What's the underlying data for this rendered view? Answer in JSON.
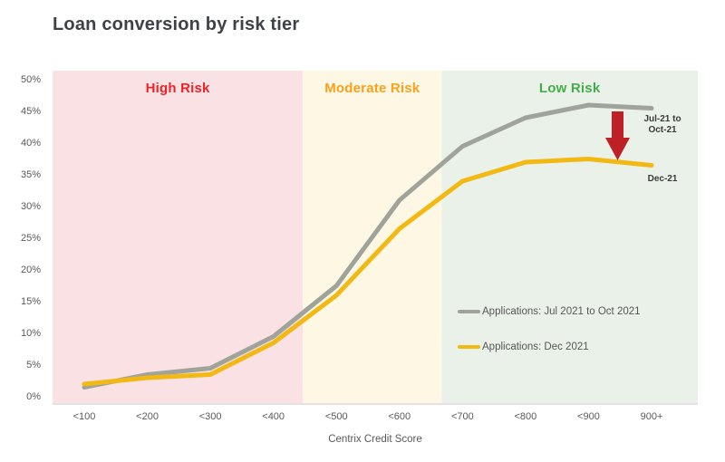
{
  "title": "Loan conversion by risk tier",
  "chart_data": {
    "type": "line",
    "title": "Loan conversion by risk tier",
    "xlabel": "Centrix Credit Score",
    "ylabel": "",
    "categories": [
      "<100",
      "<200",
      "<300",
      "<400",
      "<500",
      "<600",
      "<700",
      "<800",
      "<900",
      "900+"
    ],
    "series": [
      {
        "name": "Applications: Jul 2021 to Oct 2021",
        "color": "#9fa39a",
        "values": [
          1.5,
          3.5,
          4.5,
          9.5,
          17.5,
          31,
          39.5,
          44,
          46,
          45.5
        ]
      },
      {
        "name": "Applications: Dec 2021",
        "color": "#f2b813",
        "values": [
          2,
          3,
          3.5,
          8.5,
          16,
          26.5,
          34,
          37,
          37.5,
          36.5
        ]
      }
    ],
    "ylim": [
      0,
      50
    ],
    "ytick_step": 5,
    "ytick_labels": [
      "0%",
      "5%",
      "10%",
      "15%",
      "20%",
      "25%",
      "30%",
      "35%",
      "40%",
      "45%",
      "50%"
    ],
    "grid": false,
    "legend_position": "inside-right",
    "zones": [
      {
        "label": "High Risk",
        "fill": "#f9e1e4",
        "label_color": "#ea2428",
        "x_start": 0,
        "x_end": 0.388
      },
      {
        "label": "Moderate Risk",
        "fill": "#fdf7e4",
        "label_color": "#f7a11c",
        "x_start": 0.388,
        "x_end": 0.603
      },
      {
        "label": "Low Risk",
        "fill": "#eaf1e8",
        "label_color": "#45ac4b",
        "x_start": 0.603,
        "x_end": 1
      }
    ],
    "annotations": {
      "arrow": "down-arrow",
      "arrow_color": "#bf2026",
      "gray_line_label_line1": "Jul-21 to",
      "gray_line_label_line2": "Oct-21",
      "yellow_line_label": "Dec-21"
    },
    "axis_line_color": "#d9d9d9"
  }
}
